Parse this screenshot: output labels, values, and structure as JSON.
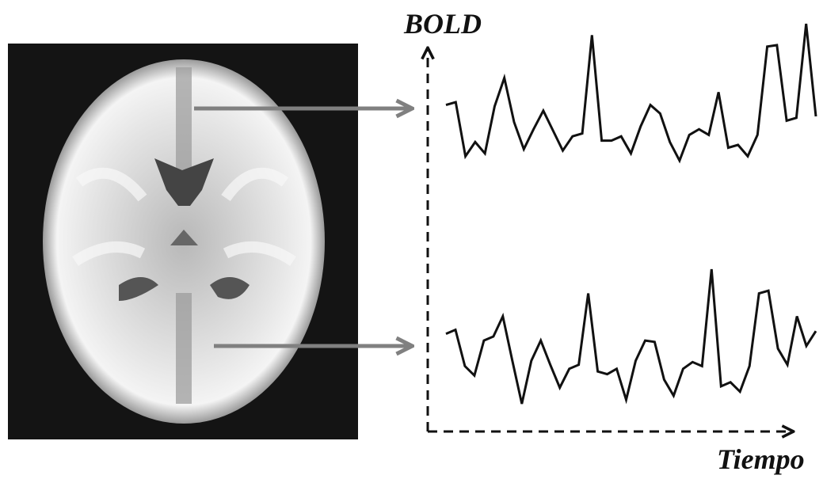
{
  "chart_data": {
    "type": "line",
    "y_label": "BOLD",
    "x_label": "Tiempo",
    "ylim": [
      0,
      10
    ],
    "series": [
      {
        "color": "#111111",
        "values": [
          4.3,
          4.5,
          0.7,
          1.7,
          0.9,
          4.2,
          6.2,
          3.1,
          1.2,
          2.6,
          3.9,
          2.5,
          1.1,
          2.1,
          2.3,
          9.2,
          1.8,
          1.8,
          2.1,
          0.9,
          2.8,
          4.3,
          3.7,
          1.7,
          0.4,
          2.2,
          2.6,
          2.2,
          5.2,
          1.3,
          1.5,
          0.7,
          2.2,
          8.4,
          8.5,
          3.2,
          3.4,
          10.0,
          3.5
        ]
      },
      {
        "color": "#111111",
        "values": [
          5.2,
          5.5,
          2.8,
          2.1,
          4.7,
          5.0,
          6.5,
          3.2,
          0,
          3.2,
          4.7,
          2.9,
          1.2,
          2.6,
          2.9,
          8.2,
          2.4,
          2.2,
          2.6,
          0.3,
          3.2,
          4.7,
          4.6,
          1.8,
          0.6,
          2.6,
          3.1,
          2.8,
          10.0,
          1.3,
          1.6,
          0.9,
          2.8,
          8.2,
          8.4,
          4.1,
          2.9,
          6.5,
          4.3,
          5.4
        ]
      }
    ]
  }
}
